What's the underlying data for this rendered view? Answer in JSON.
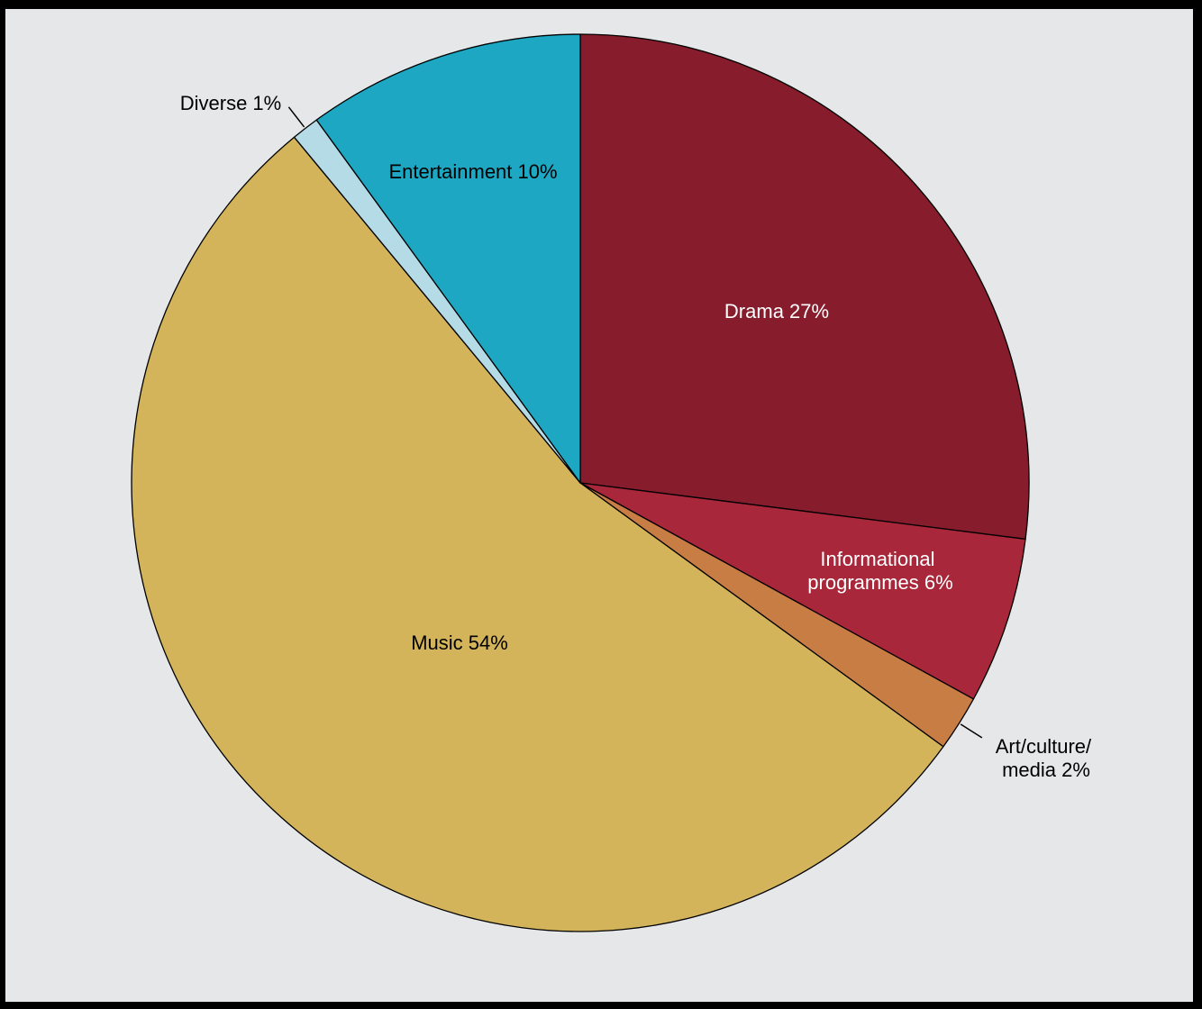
{
  "chart_data": {
    "type": "pie",
    "slices": [
      {
        "label": "Drama 27%",
        "value": 27,
        "color": "#861c2c",
        "text_color": "#ffffff"
      },
      {
        "label": "Informational programmes 6%",
        "value": 6,
        "color": "#a8273a",
        "text_color": "#ffffff"
      },
      {
        "label": "Art/culture/ media 2%",
        "value": 2,
        "color": "#c87d45",
        "text_color": "#000000"
      },
      {
        "label": "Music 54%",
        "value": 54,
        "color": "#d3b45a",
        "text_color": "#000000"
      },
      {
        "label": "Diverse 1%",
        "value": 1,
        "color": "#b5dbe6",
        "text_color": "#000000"
      },
      {
        "label": "Entertainment 10%",
        "value": 10,
        "color": "#1ea7c3",
        "text_color": "#000000"
      }
    ],
    "start_angle": "12 o'clock",
    "direction": "clockwise",
    "legend": "none"
  }
}
